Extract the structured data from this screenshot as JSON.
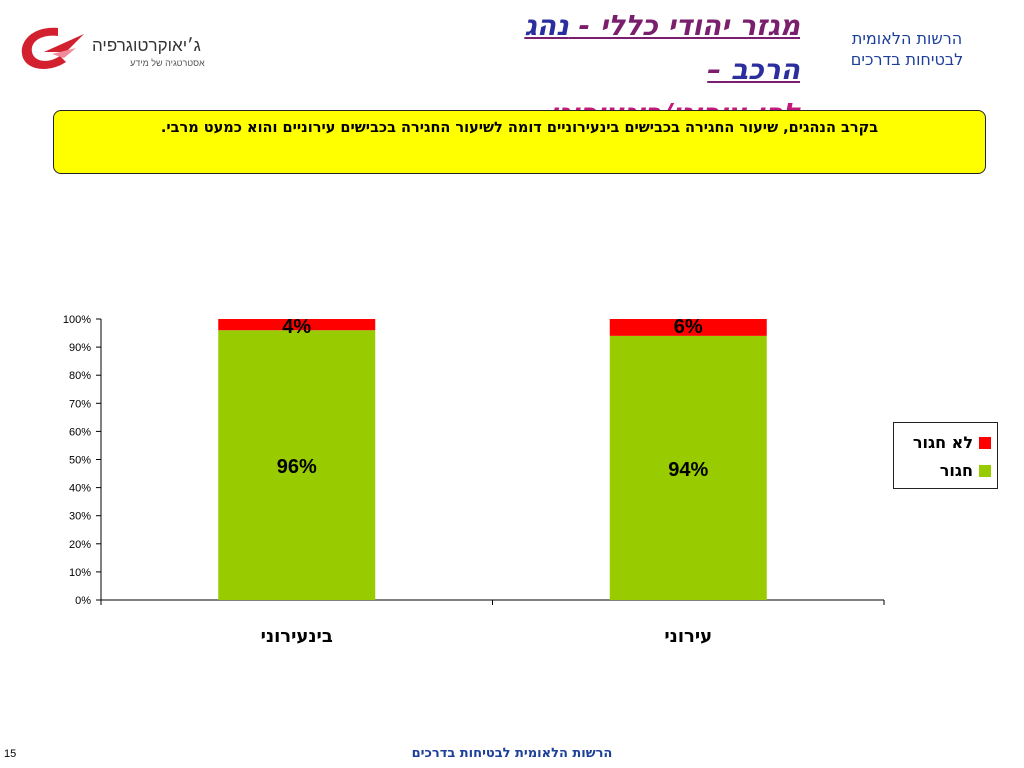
{
  "logo": {
    "name": "ג׳יאוקרטוגרפיה",
    "tagline": "אסטרטגיה של מידע"
  },
  "title": {
    "line1_prefix": "מגזר יהודי כללי - ",
    "line1_highlight": "נהג הרכב",
    "line1_suffix": " –",
    "line2": "לפי עירוני/בינעירוני"
  },
  "org": {
    "line1": "הרשות הלאומית",
    "line2": "לבטיחות בדרכים"
  },
  "callout": {
    "text": "בקרב הנהגים, שיעור החגירה בכבישים בינעירוניים דומה לשיעור החגירה בכבישים עירוניים והוא כמעט מרבי."
  },
  "chart_data": {
    "type": "bar",
    "stacked": true,
    "categories": [
      "בינעירוני",
      "עירוני"
    ],
    "series": [
      {
        "name": "חגור",
        "values": [
          96,
          94
        ],
        "labels": [
          "96%",
          "94%"
        ],
        "color": "#99cc00"
      },
      {
        "name": "לא חגור",
        "values": [
          4,
          6
        ],
        "labels": [
          "4%",
          "6%"
        ],
        "color": "#ff0000"
      }
    ],
    "yticks": [
      "0%",
      "10%",
      "20%",
      "30%",
      "40%",
      "50%",
      "60%",
      "70%",
      "80%",
      "90%",
      "100%"
    ],
    "ylim": [
      0,
      100
    ],
    "legend": "right"
  },
  "legend": [
    {
      "label": "לא חגור",
      "color": "#ff0000"
    },
    {
      "label": "חגור",
      "color": "#99cc00"
    }
  ],
  "footer": {
    "text": "הרשות הלאומית לבטיחות בדרכים"
  },
  "page_number": "15"
}
